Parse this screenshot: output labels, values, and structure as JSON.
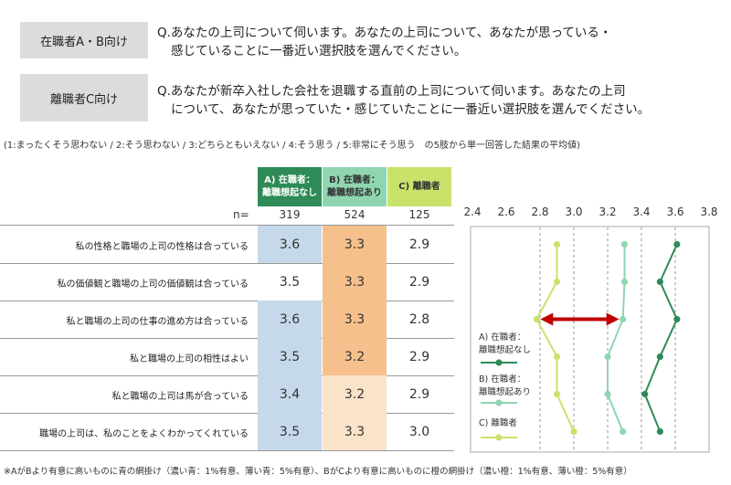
{
  "questions": [
    {
      "label": "在職者A・B向け",
      "text1": "Q.あなたの上司について伺います。あなたの上司について、あなたが思っている・",
      "text2": "感じていることに一番近い選択肢を選んでください。"
    },
    {
      "label": "離職者C向け",
      "text1": "Q.あなたが新卒入社した会社を退職する直前の上司について伺います。あなたの上司",
      "text2": "について、あなたが思っていた・感じていたことに一番近い選択肢を選んでください。"
    }
  ],
  "scale_note": "(1:まったくそう思わない / 2:そう思わない / 3:どちらともいえない / 4:そう思う / 5:非常にそう思う　の5肢から単一回答した結果の平均値)",
  "n_label": "n=",
  "footnote": "※AがBより有意に高いものに青の網掛け（濃い青：1%有意、薄い青：5%有意）、BがCより有意に高いものに橙の網掛け（濃い橙：1%有意、薄い橙：5%有意）",
  "colors": {
    "A": "#2e8b57",
    "B": "#8fd6b0",
    "C": "#c9e26a",
    "blue_dark": "#c5d9ea",
    "orange_dark": "#f6c08c",
    "orange_light": "#fbe3c9",
    "arrow": "#c00000"
  },
  "chart_data": {
    "type": "line",
    "groups": [
      {
        "header1": "A) 在職者：",
        "header2": "離職想起なし",
        "n": "319",
        "legend1": "A) 在職者：",
        "legend2": "離職想起なし"
      },
      {
        "header1": "B) 在職者：",
        "header2": "離職想起あり",
        "n": "524",
        "legend1": "B) 在職者：",
        "legend2": "離職想起あり"
      },
      {
        "header1": "C) 離職者",
        "header2": "",
        "n": "125",
        "legend1": "C) 離職者",
        "legend2": ""
      }
    ],
    "categories": [
      "私の性格と職場の上司の性格は合っている",
      "私の価値観と職場の上司の価値観は合っている",
      "私と職場の上司の仕事の進め方は合っている",
      "私と職場の上司の相性はよい",
      "私と職場の上司は馬が合っている",
      "職場の上司は、私のことをよくわかってくれている"
    ],
    "table_values": [
      [
        "3.6",
        "3.3",
        "2.9"
      ],
      [
        "3.5",
        "3.3",
        "2.9"
      ],
      [
        "3.6",
        "3.3",
        "2.8"
      ],
      [
        "3.5",
        "3.2",
        "2.9"
      ],
      [
        "3.4",
        "3.2",
        "2.9"
      ],
      [
        "3.5",
        "3.3",
        "3.0"
      ]
    ],
    "shading": [
      [
        "blue",
        "orange",
        ""
      ],
      [
        "",
        "orange",
        ""
      ],
      [
        "blue",
        "orange",
        ""
      ],
      [
        "blue",
        "orange",
        ""
      ],
      [
        "blue",
        "orange_light",
        ""
      ],
      [
        "blue",
        "orange_light",
        ""
      ]
    ],
    "series": [
      {
        "name": "A",
        "values": [
          3.61,
          3.51,
          3.61,
          3.51,
          3.42,
          3.51
        ]
      },
      {
        "name": "B",
        "values": [
          3.3,
          3.3,
          3.29,
          3.2,
          3.2,
          3.29
        ]
      },
      {
        "name": "C",
        "values": [
          2.9,
          2.9,
          2.78,
          2.9,
          2.9,
          3.0
        ]
      }
    ],
    "xlim": [
      2.4,
      3.8
    ],
    "xticks": [
      "2.4",
      "2.6",
      "2.8",
      "3.0",
      "3.2",
      "3.4",
      "3.6",
      "3.8"
    ],
    "dashed_ticks": [
      2.8,
      3.0,
      3.2,
      3.4,
      3.6
    ],
    "arrow": {
      "row": 2,
      "from": 2.78,
      "to": 3.29
    }
  }
}
